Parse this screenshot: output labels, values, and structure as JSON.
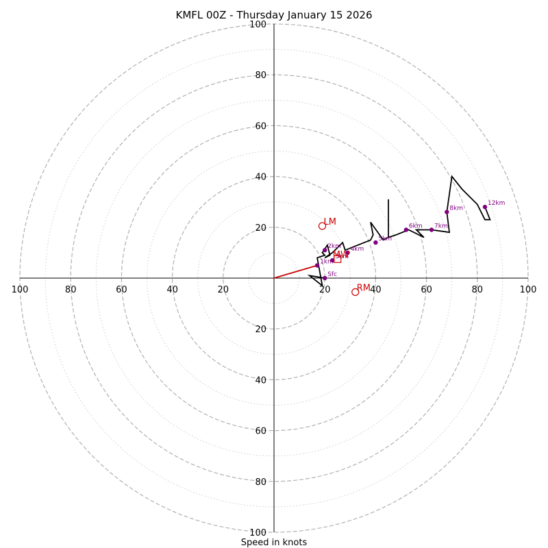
{
  "chart_data": {
    "type": "hodograph",
    "title": "KMFL 00Z - Thursday January 15 2026",
    "xlabel": "Speed in knots",
    "max_speed": 100,
    "ring_speeds": [
      20,
      40,
      60,
      80,
      100
    ],
    "minor_ring_speeds": [
      10,
      30,
      50,
      70,
      90
    ],
    "tick_values": [
      20,
      40,
      60,
      80,
      100
    ],
    "tick_labels": [
      "20",
      "40",
      "60",
      "80",
      "100"
    ],
    "colors": {
      "trace": "#000000",
      "height_marker": "#800080",
      "motion": "#cc0000",
      "ring_major": "#b0b0b0",
      "ring_minor": "#cccccc",
      "axis": "#000000"
    },
    "hodograph_trace": [
      [
        20,
        0
      ],
      [
        14,
        1
      ],
      [
        19,
        -3
      ],
      [
        17,
        8
      ],
      [
        20,
        9
      ],
      [
        19,
        10
      ],
      [
        21,
        13
      ],
      [
        22,
        9
      ],
      [
        20,
        8
      ],
      [
        23,
        10
      ],
      [
        27,
        14
      ],
      [
        28,
        11
      ],
      [
        33,
        13
      ],
      [
        38,
        15
      ],
      [
        39,
        17
      ],
      [
        38,
        22
      ],
      [
        43,
        15
      ],
      [
        45,
        16
      ],
      [
        45,
        31
      ],
      [
        45,
        16
      ],
      [
        48,
        17
      ],
      [
        53,
        19
      ],
      [
        59,
        16
      ],
      [
        56,
        19
      ],
      [
        62,
        19
      ],
      [
        69,
        18
      ],
      [
        68,
        26
      ],
      [
        70,
        40
      ],
      [
        74,
        35
      ],
      [
        80,
        29
      ],
      [
        83,
        23
      ],
      [
        85,
        23
      ],
      [
        83,
        28
      ]
    ],
    "height_markers": [
      {
        "label": "Sfc",
        "u": 20,
        "v": 0
      },
      {
        "label": "1km",
        "u": 17,
        "v": 5
      },
      {
        "label": "2km",
        "u": 20,
        "v": 11
      },
      {
        "label": "3km",
        "u": 23,
        "v": 7
      },
      {
        "label": "4km",
        "u": 29,
        "v": 10
      },
      {
        "label": "5km",
        "u": 40,
        "v": 14
      },
      {
        "label": "6km",
        "u": 52,
        "v": 19
      },
      {
        "label": "7km",
        "u": 62,
        "v": 19
      },
      {
        "label": "8km",
        "u": 68,
        "v": 26
      },
      {
        "label": "12km",
        "u": 83,
        "v": 28
      }
    ],
    "storm_motions": [
      {
        "label": "LM",
        "u": 19,
        "v": 20.5,
        "marker": "circle"
      },
      {
        "label": "RM",
        "u": 32,
        "v": -5.5,
        "marker": "circle"
      },
      {
        "label": "MW",
        "u": 25,
        "v": 7.5,
        "marker": "square"
      }
    ],
    "shear_vector": {
      "from_u": 0,
      "from_v": 0,
      "to_u": 17,
      "to_v": 5
    }
  }
}
